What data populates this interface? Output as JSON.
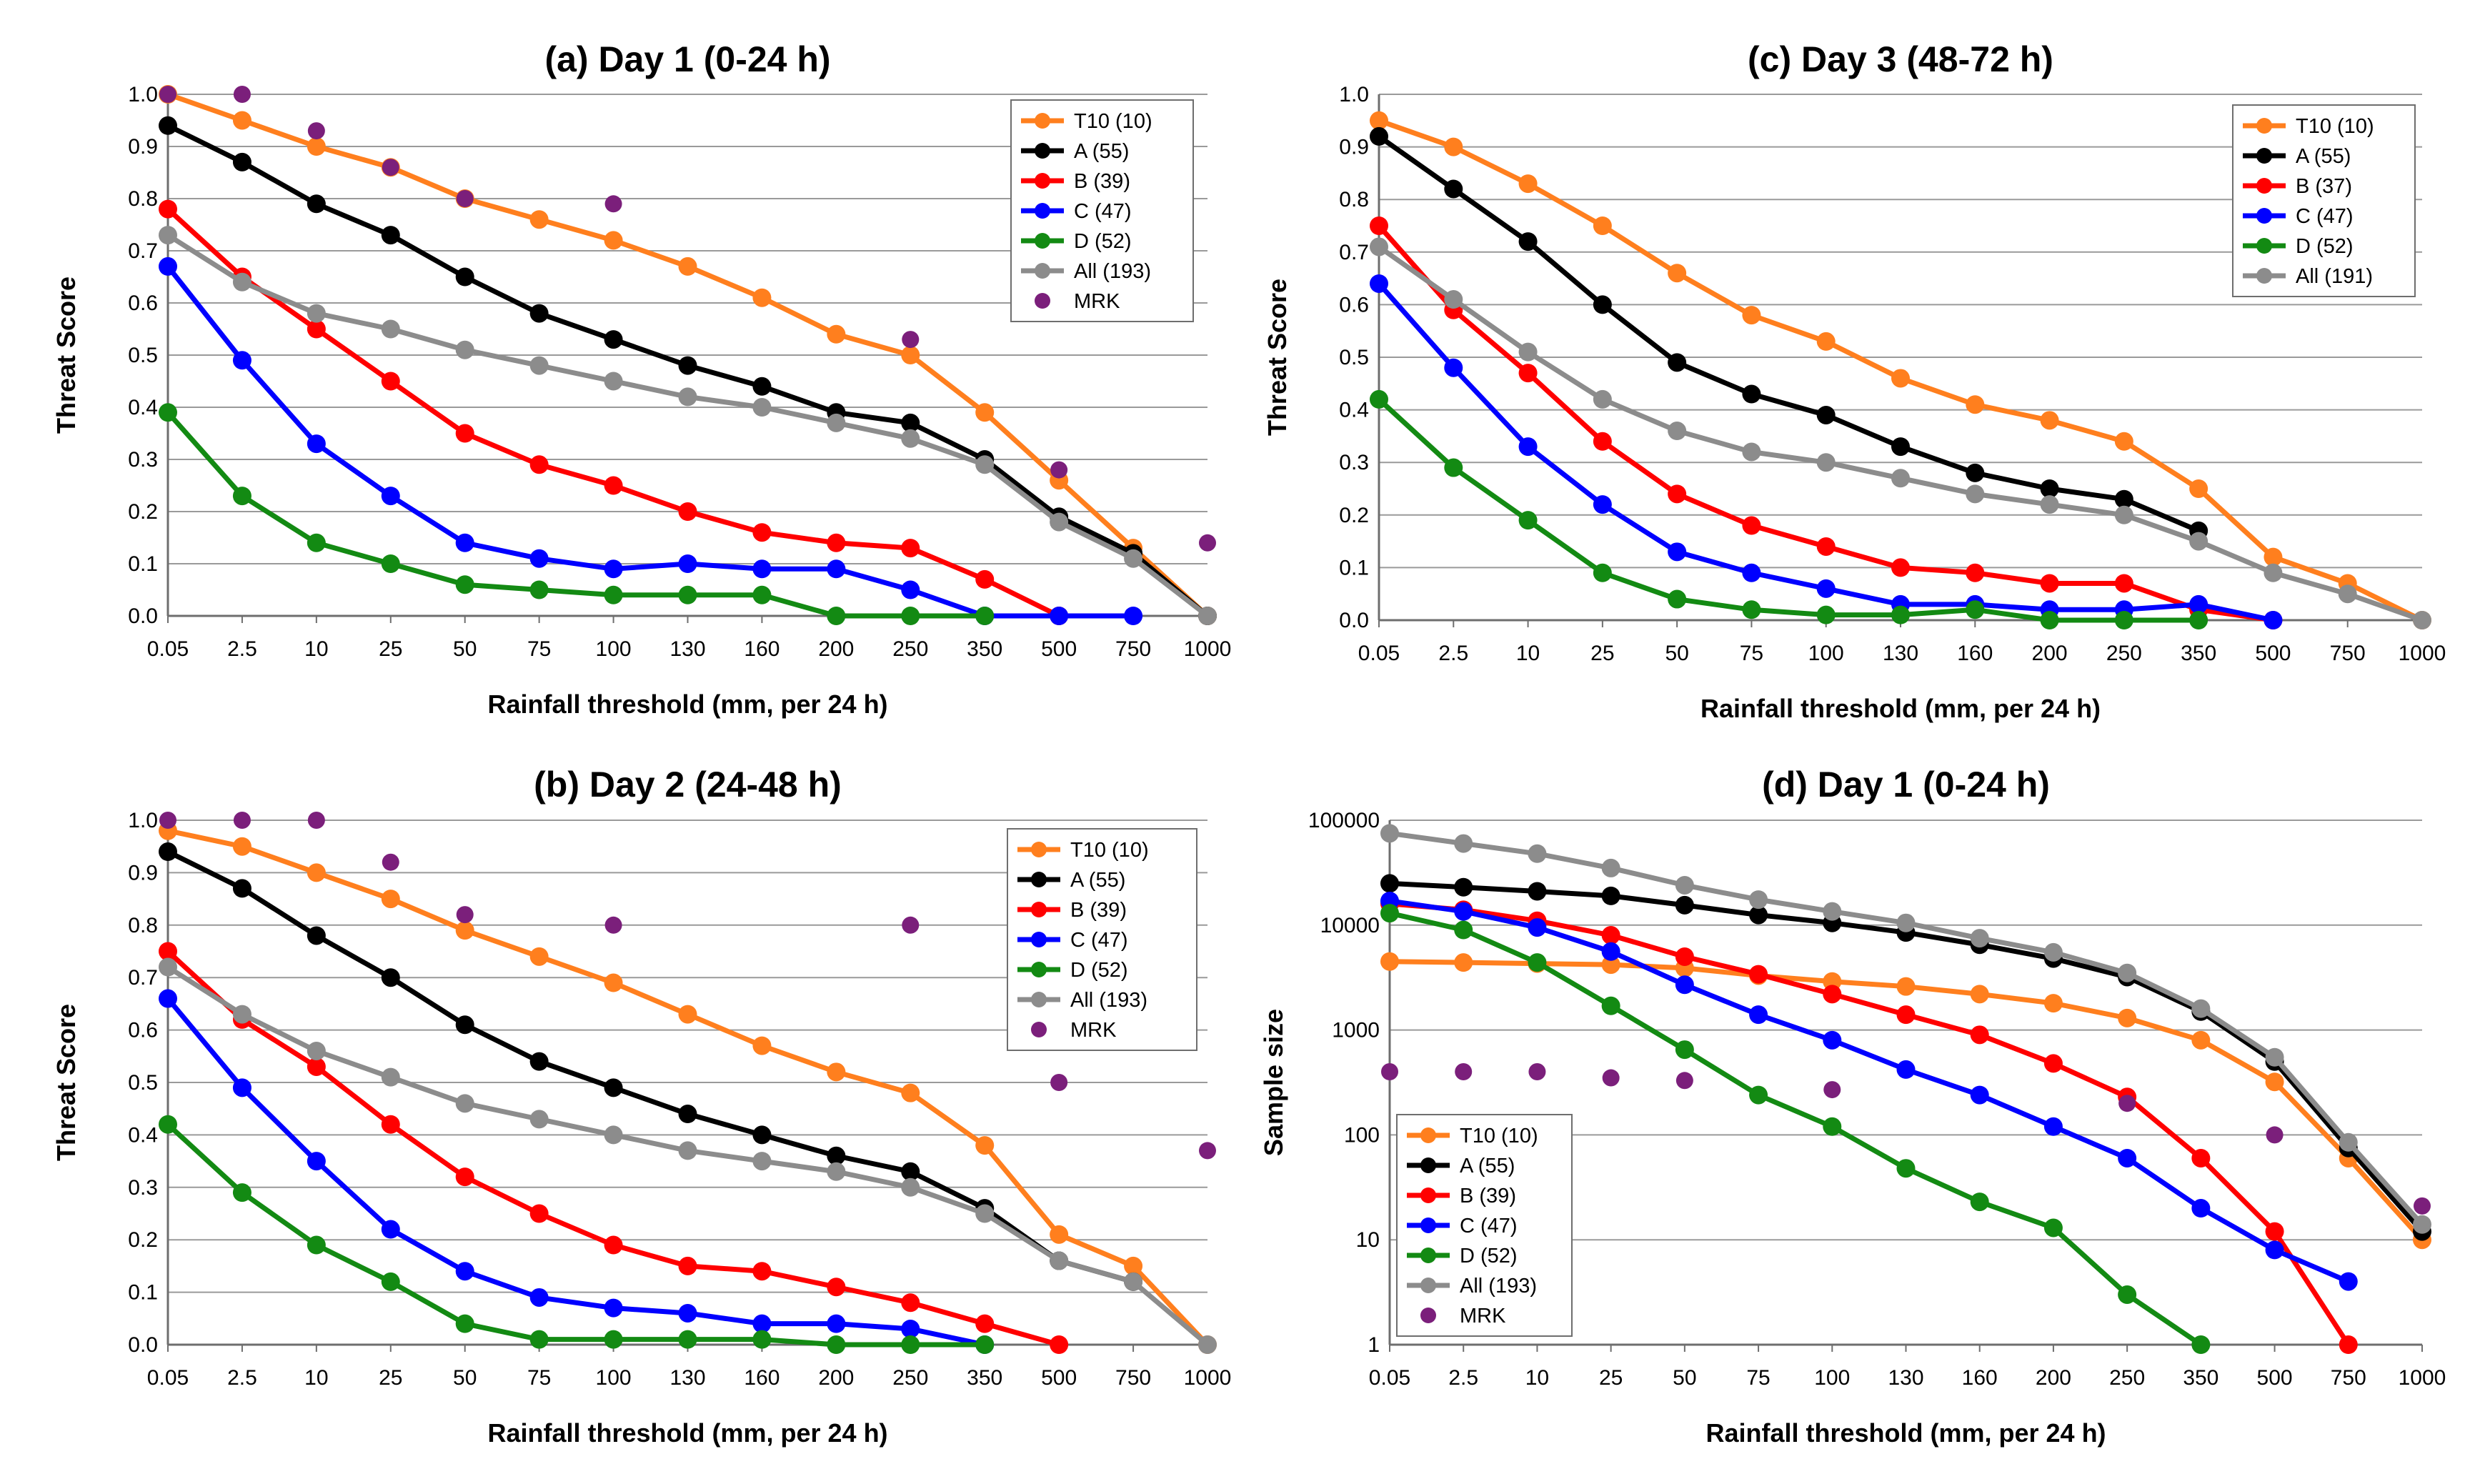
{
  "colors": {
    "T10": "#ff7f1e",
    "A": "#000000",
    "B": "#ff0000",
    "C": "#0000ff",
    "D": "#138a13",
    "All": "#8c8c8c",
    "MRK": "#7b1f7b",
    "grid": "#9a9a9a"
  },
  "chart_data": [
    {
      "type": "line",
      "title": "(a) Day 1 (0-24 h)",
      "xlabel": "Rainfall threshold (mm, per 24 h)",
      "ylabel": "Threat Score",
      "yscale": "linear",
      "ylim": [
        0,
        1.0
      ],
      "yticks": [
        "0.0",
        "0.1",
        "0.2",
        "0.3",
        "0.4",
        "0.5",
        "0.6",
        "0.7",
        "0.8",
        "0.9",
        "1.0"
      ],
      "categories": [
        "0.05",
        "2.5",
        "10",
        "25",
        "50",
        "75",
        "100",
        "130",
        "160",
        "200",
        "250",
        "350",
        "500",
        "750",
        "1000"
      ],
      "legend_position": "top-right",
      "series": [
        {
          "name": "T10 (10)",
          "key": "T10",
          "values": [
            1.0,
            0.95,
            0.9,
            0.86,
            0.8,
            0.76,
            0.72,
            0.67,
            0.61,
            0.54,
            0.5,
            0.39,
            0.26,
            0.13,
            0.0
          ]
        },
        {
          "name": "A (55)",
          "key": "A",
          "values": [
            0.94,
            0.87,
            0.79,
            0.73,
            0.65,
            0.58,
            0.53,
            0.48,
            0.44,
            0.39,
            0.37,
            0.3,
            0.19,
            0.12,
            0.0
          ]
        },
        {
          "name": "B (39)",
          "key": "B",
          "values": [
            0.78,
            0.65,
            0.55,
            0.45,
            0.35,
            0.29,
            0.25,
            0.2,
            0.16,
            0.14,
            0.13,
            0.07,
            0.0,
            null,
            null
          ]
        },
        {
          "name": "C (47)",
          "key": "C",
          "values": [
            0.67,
            0.49,
            0.33,
            0.23,
            0.14,
            0.11,
            0.09,
            0.1,
            0.09,
            0.09,
            0.05,
            0.0,
            0.0,
            0.0,
            null
          ]
        },
        {
          "name": "D (52)",
          "key": "D",
          "values": [
            0.39,
            0.23,
            0.14,
            0.1,
            0.06,
            0.05,
            0.04,
            0.04,
            0.04,
            0.0,
            0.0,
            0.0,
            null,
            null,
            null
          ]
        },
        {
          "name": "All (193)",
          "key": "All",
          "values": [
            0.73,
            0.64,
            0.58,
            0.55,
            0.51,
            0.48,
            0.45,
            0.42,
            0.4,
            0.37,
            0.34,
            0.29,
            0.18,
            0.11,
            0.0
          ]
        },
        {
          "name": "MRK",
          "key": "MRK",
          "markers_only": true,
          "values": [
            1.0,
            1.0,
            0.93,
            0.86,
            0.8,
            null,
            0.79,
            null,
            null,
            null,
            0.53,
            null,
            0.28,
            null,
            0.14
          ]
        }
      ]
    },
    {
      "type": "line",
      "title": "(c) Day 3 (48-72 h)",
      "xlabel": "Rainfall threshold (mm, per 24 h)",
      "ylabel": "Threat Score",
      "yscale": "linear",
      "ylim": [
        0,
        1.0
      ],
      "yticks": [
        "0.0",
        "0.1",
        "0.2",
        "0.3",
        "0.4",
        "0.5",
        "0.6",
        "0.7",
        "0.8",
        "0.9",
        "1.0"
      ],
      "categories": [
        "0.05",
        "2.5",
        "10",
        "25",
        "50",
        "75",
        "100",
        "130",
        "160",
        "200",
        "250",
        "350",
        "500",
        "750",
        "1000"
      ],
      "legend_position": "top-right",
      "series": [
        {
          "name": "T10 (10)",
          "key": "T10",
          "values": [
            0.95,
            0.9,
            0.83,
            0.75,
            0.66,
            0.58,
            0.53,
            0.46,
            0.41,
            0.38,
            0.34,
            0.25,
            0.12,
            0.07,
            0.0
          ]
        },
        {
          "name": "A (55)",
          "key": "A",
          "values": [
            0.92,
            0.82,
            0.72,
            0.6,
            0.49,
            0.43,
            0.39,
            0.33,
            0.28,
            0.25,
            0.23,
            0.17,
            null,
            null,
            null
          ]
        },
        {
          "name": "B (37)",
          "key": "B",
          "values": [
            0.75,
            0.59,
            0.47,
            0.34,
            0.24,
            0.18,
            0.14,
            0.1,
            0.09,
            0.07,
            0.07,
            0.02,
            0.0,
            null,
            null
          ]
        },
        {
          "name": "C (47)",
          "key": "C",
          "values": [
            0.64,
            0.48,
            0.33,
            0.22,
            0.13,
            0.09,
            0.06,
            0.03,
            0.03,
            0.02,
            0.02,
            0.03,
            0.0,
            null,
            null
          ]
        },
        {
          "name": "D (52)",
          "key": "D",
          "values": [
            0.42,
            0.29,
            0.19,
            0.09,
            0.04,
            0.02,
            0.01,
            0.01,
            0.02,
            0.0,
            0.0,
            0.0,
            null,
            null,
            null
          ]
        },
        {
          "name": "All (191)",
          "key": "All",
          "values": [
            0.71,
            0.61,
            0.51,
            0.42,
            0.36,
            0.32,
            0.3,
            0.27,
            0.24,
            0.22,
            0.2,
            0.15,
            0.09,
            0.05,
            0.0
          ]
        }
      ]
    },
    {
      "type": "line",
      "title": "(b) Day 2 (24-48 h)",
      "xlabel": "Rainfall threshold (mm, per 24 h)",
      "ylabel": "Threat Score",
      "yscale": "linear",
      "ylim": [
        0,
        1.0
      ],
      "yticks": [
        "0.0",
        "0.1",
        "0.2",
        "0.3",
        "0.4",
        "0.5",
        "0.6",
        "0.7",
        "0.8",
        "0.9",
        "1.0"
      ],
      "categories": [
        "0.05",
        "2.5",
        "10",
        "25",
        "50",
        "75",
        "100",
        "130",
        "160",
        "200",
        "250",
        "350",
        "500",
        "750",
        "1000"
      ],
      "legend_position": "top-right",
      "series": [
        {
          "name": "T10 (10)",
          "key": "T10",
          "values": [
            0.98,
            0.95,
            0.9,
            0.85,
            0.79,
            0.74,
            0.69,
            0.63,
            0.57,
            0.52,
            0.48,
            0.38,
            0.21,
            0.15,
            0.0
          ]
        },
        {
          "name": "A (55)",
          "key": "A",
          "values": [
            0.94,
            0.87,
            0.78,
            0.7,
            0.61,
            0.54,
            0.49,
            0.44,
            0.4,
            0.36,
            0.33,
            0.26,
            0.16,
            0.12,
            null
          ]
        },
        {
          "name": "B (39)",
          "key": "B",
          "values": [
            0.75,
            0.62,
            0.53,
            0.42,
            0.32,
            0.25,
            0.19,
            0.15,
            0.14,
            0.11,
            0.08,
            0.04,
            0.0,
            null,
            null
          ]
        },
        {
          "name": "C (47)",
          "key": "C",
          "values": [
            0.66,
            0.49,
            0.35,
            0.22,
            0.14,
            0.09,
            0.07,
            0.06,
            0.04,
            0.04,
            0.03,
            0.0,
            null,
            null,
            null
          ]
        },
        {
          "name": "D (52)",
          "key": "D",
          "values": [
            0.42,
            0.29,
            0.19,
            0.12,
            0.04,
            0.01,
            0.01,
            0.01,
            0.01,
            0.0,
            0.0,
            0.0,
            null,
            null,
            null
          ]
        },
        {
          "name": "All (193)",
          "key": "All",
          "values": [
            0.72,
            0.63,
            0.56,
            0.51,
            0.46,
            0.43,
            0.4,
            0.37,
            0.35,
            0.33,
            0.3,
            0.25,
            0.16,
            0.12,
            0.0
          ]
        },
        {
          "name": "MRK",
          "key": "MRK",
          "markers_only": true,
          "values": [
            1.0,
            1.0,
            1.0,
            0.92,
            0.82,
            null,
            0.8,
            null,
            null,
            null,
            0.8,
            null,
            0.5,
            null,
            0.37
          ]
        }
      ]
    },
    {
      "type": "line",
      "title": "(d) Day 1 (0-24 h)",
      "xlabel": "Rainfall threshold (mm, per 24 h)",
      "ylabel": "Sample size",
      "yscale": "log",
      "ylim": [
        1,
        100000
      ],
      "yticks": [
        "1",
        "10",
        "100",
        "1000",
        "10000",
        "100000"
      ],
      "categories": [
        "0.05",
        "2.5",
        "10",
        "25",
        "50",
        "75",
        "100",
        "130",
        "160",
        "200",
        "250",
        "350",
        "500",
        "750",
        "1000"
      ],
      "legend_position": "bottom-left",
      "series": [
        {
          "name": "T10 (10)",
          "key": "T10",
          "values": [
            4500,
            4400,
            4300,
            4200,
            3900,
            3300,
            2900,
            2600,
            2200,
            1800,
            1300,
            800,
            320,
            60,
            10
          ]
        },
        {
          "name": "A (55)",
          "key": "A",
          "values": [
            25000,
            23000,
            21000,
            19000,
            15500,
            12500,
            10500,
            8500,
            6500,
            4800,
            3200,
            1500,
            500,
            75,
            12
          ]
        },
        {
          "name": "B (39)",
          "key": "B",
          "values": [
            16000,
            14000,
            11000,
            8000,
            5000,
            3400,
            2200,
            1400,
            900,
            480,
            230,
            60,
            12,
            1,
            null
          ]
        },
        {
          "name": "C (47)",
          "key": "C",
          "values": [
            17000,
            13500,
            9500,
            5600,
            2700,
            1400,
            800,
            420,
            240,
            120,
            60,
            20,
            8,
            4,
            null
          ]
        },
        {
          "name": "D (52)",
          "key": "D",
          "values": [
            13000,
            9000,
            4400,
            1700,
            650,
            240,
            120,
            48,
            23,
            13,
            3,
            1,
            null,
            null,
            null
          ]
        },
        {
          "name": "All (193)",
          "key": "All",
          "values": [
            75000,
            60000,
            48000,
            35000,
            24000,
            17500,
            13500,
            10500,
            7500,
            5500,
            3500,
            1600,
            550,
            85,
            14
          ]
        },
        {
          "name": "MRK",
          "key": "MRK",
          "markers_only": true,
          "values": [
            400,
            400,
            400,
            350,
            330,
            null,
            270,
            null,
            null,
            null,
            200,
            null,
            100,
            null,
            21
          ]
        }
      ]
    }
  ]
}
